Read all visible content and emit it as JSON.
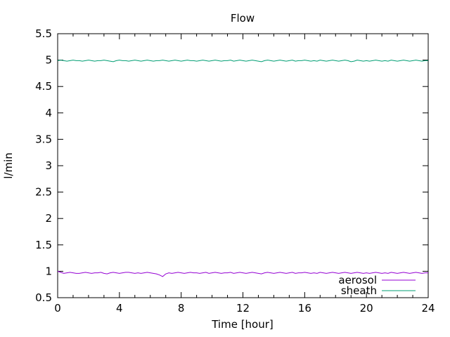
{
  "figure": {
    "background": "#ffffff",
    "text_color": "#000000",
    "border_color": "#000000"
  },
  "chart_data": {
    "type": "line",
    "title": "Flow",
    "xlabel": "Time [hour]",
    "ylabel": "l/min",
    "xlim": [
      0,
      24
    ],
    "ylim": [
      0.5,
      5.5
    ],
    "grid": false,
    "legend_position": "inside-bottom-right",
    "x_major_ticks": [
      0,
      4,
      8,
      12,
      16,
      20,
      24
    ],
    "x_tick_labels": [
      "0",
      "4",
      "8",
      "12",
      "16",
      "20",
      "24"
    ],
    "x_minor_tick_step": 1,
    "y_ticks": [
      0.5,
      1,
      1.5,
      2,
      2.5,
      3,
      3.5,
      4,
      4.5,
      5,
      5.5
    ],
    "y_tick_labels": [
      "0.5",
      "1",
      "1.5",
      "2",
      "2.5",
      "3",
      "3.5",
      "4",
      "4.5",
      "5",
      "5.5"
    ],
    "x_step": 0.2,
    "series": [
      {
        "name": "aerosol",
        "color": "#9400d3",
        "mean_level": 0.97,
        "values": [
          1.0,
          0.98,
          0.96,
          0.97,
          0.98,
          0.97,
          0.96,
          0.96,
          0.97,
          0.98,
          0.97,
          0.96,
          0.97,
          0.97,
          0.98,
          0.96,
          0.95,
          0.97,
          0.98,
          0.97,
          0.96,
          0.97,
          0.98,
          0.98,
          0.97,
          0.96,
          0.97,
          0.96,
          0.97,
          0.98,
          0.97,
          0.96,
          0.95,
          0.93,
          0.9,
          0.95,
          0.97,
          0.96,
          0.97,
          0.98,
          0.97,
          0.96,
          0.97,
          0.98,
          0.97,
          0.97,
          0.96,
          0.97,
          0.98,
          0.96,
          0.97,
          0.98,
          0.97,
          0.96,
          0.97,
          0.97,
          0.98,
          0.96,
          0.97,
          0.98,
          0.97,
          0.96,
          0.97,
          0.98,
          0.97,
          0.96,
          0.95,
          0.97,
          0.98,
          0.97,
          0.96,
          0.97,
          0.98,
          0.97,
          0.96,
          0.97,
          0.98,
          0.96,
          0.97,
          0.97,
          0.98,
          0.97,
          0.96,
          0.97,
          0.96,
          0.98,
          0.97,
          0.96,
          0.97,
          0.98,
          0.97,
          0.96,
          0.97,
          0.98,
          0.97,
          0.96,
          0.97,
          0.98,
          0.97,
          0.96,
          0.97,
          0.96,
          0.97,
          0.98,
          0.97,
          0.96,
          0.97,
          0.96,
          0.98,
          0.97,
          0.96,
          0.97,
          0.98,
          0.97,
          0.96,
          0.97,
          0.98,
          0.97,
          0.96,
          0.97,
          0.97
        ]
      },
      {
        "name": "sheath",
        "color": "#009e73",
        "mean_level": 4.99,
        "values": [
          4.99,
          5.0,
          4.99,
          4.98,
          4.99,
          5.0,
          4.99,
          4.99,
          4.98,
          4.99,
          5.0,
          4.99,
          4.98,
          4.99,
          4.99,
          5.0,
          4.99,
          4.98,
          4.97,
          4.99,
          5.0,
          4.99,
          4.99,
          4.98,
          4.99,
          5.0,
          4.99,
          4.98,
          4.99,
          5.0,
          4.99,
          4.98,
          4.99,
          4.99,
          5.0,
          4.99,
          4.98,
          4.99,
          5.0,
          4.99,
          4.98,
          4.99,
          5.0,
          4.99,
          4.99,
          4.98,
          4.99,
          5.0,
          4.99,
          4.98,
          4.99,
          5.0,
          4.99,
          4.98,
          4.99,
          4.99,
          5.0,
          4.98,
          4.99,
          5.0,
          4.99,
          4.98,
          4.99,
          5.0,
          4.99,
          4.98,
          4.97,
          4.99,
          5.0,
          4.99,
          4.98,
          4.99,
          5.0,
          4.99,
          4.98,
          4.99,
          5.0,
          4.98,
          4.99,
          4.99,
          5.0,
          4.99,
          4.98,
          4.99,
          4.98,
          5.0,
          4.99,
          4.98,
          4.99,
          5.0,
          4.99,
          4.98,
          4.99,
          5.0,
          4.99,
          4.97,
          4.98,
          5.0,
          4.99,
          4.98,
          4.99,
          4.98,
          4.99,
          5.0,
          4.99,
          4.98,
          4.99,
          4.98,
          5.0,
          4.99,
          4.98,
          4.99,
          5.0,
          4.99,
          4.98,
          4.99,
          5.0,
          4.99,
          4.98,
          4.99,
          4.99
        ]
      }
    ]
  }
}
